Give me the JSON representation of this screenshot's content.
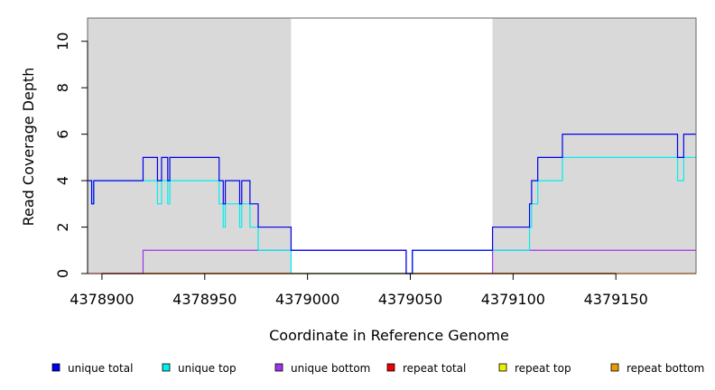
{
  "chart_data": {
    "type": "line",
    "title": "",
    "xlabel": "Coordinate in Reference Genome",
    "ylabel": "Read Coverage Depth",
    "xlim": [
      4378893,
      4379189
    ],
    "ylim": [
      0,
      11
    ],
    "x_ticks": [
      4378900,
      4378950,
      4379000,
      4379050,
      4379100,
      4379150
    ],
    "y_ticks": [
      0,
      2,
      4,
      6,
      8,
      10
    ],
    "shaded_regions": [
      {
        "x_start": 4378893,
        "x_end": 4378992,
        "color": "#d9d9d9"
      },
      {
        "x_start": 4379090,
        "x_end": 4379189,
        "color": "#d9d9d9"
      }
    ],
    "legend_placement": "bottom",
    "series": [
      {
        "name": "unique total",
        "color": "#0000ee",
        "steps": [
          [
            4378893,
            4
          ],
          [
            4378895,
            3
          ],
          [
            4378896,
            4
          ],
          [
            4378920,
            5
          ],
          [
            4378927,
            4
          ],
          [
            4378929,
            5
          ],
          [
            4378932,
            4
          ],
          [
            4378933,
            5
          ],
          [
            4378957,
            4
          ],
          [
            4378959,
            3
          ],
          [
            4378960,
            4
          ],
          [
            4378967,
            3
          ],
          [
            4378968,
            4
          ],
          [
            4378972,
            3
          ],
          [
            4378976,
            2
          ],
          [
            4378992,
            1
          ],
          [
            4379048,
            0
          ],
          [
            4379051,
            1
          ],
          [
            4379090,
            2
          ],
          [
            4379108,
            3
          ],
          [
            4379109,
            4
          ],
          [
            4379112,
            5
          ],
          [
            4379124,
            6
          ],
          [
            4379180,
            5
          ],
          [
            4379183,
            6
          ],
          [
            4379189,
            6
          ]
        ]
      },
      {
        "name": "unique top",
        "color": "#00eeee",
        "steps": [
          [
            4378893,
            4
          ],
          [
            4378895,
            3
          ],
          [
            4378896,
            4
          ],
          [
            4378920,
            4
          ],
          [
            4378927,
            3
          ],
          [
            4378929,
            4
          ],
          [
            4378932,
            3
          ],
          [
            4378933,
            4
          ],
          [
            4378957,
            3
          ],
          [
            4378959,
            2
          ],
          [
            4378960,
            3
          ],
          [
            4378967,
            2
          ],
          [
            4378968,
            3
          ],
          [
            4378972,
            2
          ],
          [
            4378976,
            1
          ],
          [
            4378992,
            0
          ],
          [
            4379051,
            1
          ],
          [
            4379108,
            2
          ],
          [
            4379109,
            3
          ],
          [
            4379112,
            4
          ],
          [
            4379124,
            5
          ],
          [
            4379180,
            4
          ],
          [
            4379183,
            5
          ],
          [
            4379189,
            5
          ]
        ]
      },
      {
        "name": "unique bottom",
        "color": "#9f33ee",
        "steps": [
          [
            4378893,
            0
          ],
          [
            4378920,
            1
          ],
          [
            4379048,
            0
          ],
          [
            4379051,
            1
          ],
          [
            4379090,
            0
          ],
          [
            4379090,
            1
          ],
          [
            4379189,
            1
          ]
        ]
      },
      {
        "name": "repeat total",
        "color": "#ee0000",
        "steps": [
          [
            4378893,
            0
          ],
          [
            4379189,
            0
          ]
        ]
      },
      {
        "name": "repeat top",
        "color": "#eeee00",
        "steps": [
          [
            4378893,
            0
          ],
          [
            4379189,
            0
          ]
        ]
      },
      {
        "name": "repeat bottom",
        "color": "#ee9900",
        "steps": [
          [
            4378893,
            0
          ],
          [
            4379189,
            0
          ]
        ]
      }
    ]
  }
}
